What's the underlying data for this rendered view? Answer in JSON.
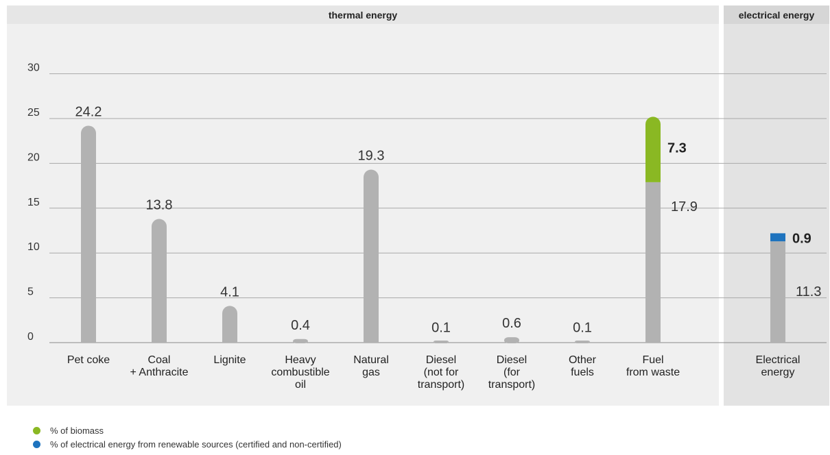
{
  "headers": {
    "thermal": "thermal energy",
    "electrical": "electrical energy"
  },
  "legend": [
    {
      "label": "% of biomass",
      "color": "#8ab823"
    },
    {
      "label": "% of electrical energy from renewable sources (certified and non-certified)",
      "color": "#1e73be"
    }
  ],
  "colors": {
    "bar": "#b2b2b2",
    "biomass": "#8ab823",
    "renewable": "#1e73be",
    "panel_thermal": "#f0f0f0",
    "panel_electrical": "#e3e3e3"
  },
  "chart_data": {
    "type": "bar",
    "ylim": [
      0,
      30
    ],
    "yticks": [
      "0",
      "5",
      "10",
      "15",
      "20",
      "25",
      "30"
    ],
    "grid": true,
    "categories": [
      [
        "Pet coke"
      ],
      [
        "Coal",
        "+ Anthracite"
      ],
      [
        "Lignite"
      ],
      [
        "Heavy",
        "combustible",
        "oil"
      ],
      [
        "Natural",
        "gas"
      ],
      [
        "Diesel",
        "(not for",
        "transport)"
      ],
      [
        "Diesel",
        "(for",
        "transport)"
      ],
      [
        "Other",
        "fuels"
      ],
      [
        "Fuel",
        "from waste"
      ],
      [
        "Electrical",
        "energy"
      ]
    ],
    "base_values": [
      24.2,
      13.8,
      4.1,
      0.4,
      19.3,
      0.1,
      0.6,
      0.1,
      17.9,
      11.3
    ],
    "base_labels": [
      "24.2",
      "13.8",
      "4.1",
      "0.4",
      "19.3",
      "0.1",
      "0.6",
      "0.1",
      "17.9",
      "11.3"
    ],
    "stacked": [
      {
        "index": 8,
        "value": 7.3,
        "label": "7.3",
        "series": "% of biomass"
      },
      {
        "index": 9,
        "value": 0.9,
        "label": "0.9",
        "series": "% of electrical energy from renewable sources (certified and non-certified)"
      }
    ]
  }
}
